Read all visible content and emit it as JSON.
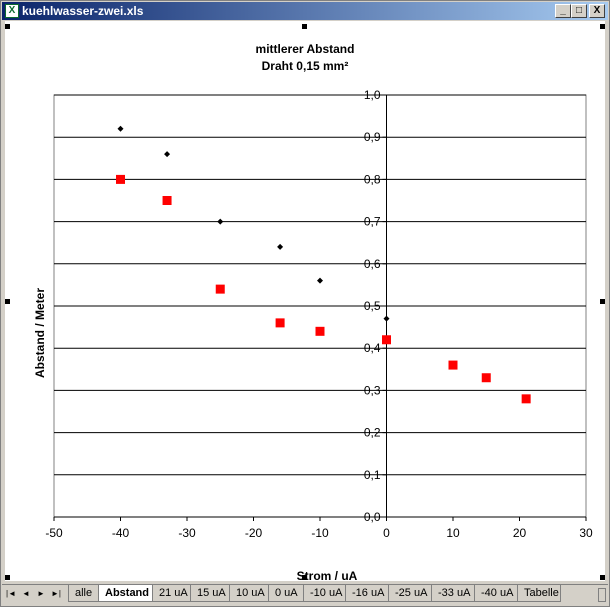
{
  "window": {
    "title": "kuehlwasser-zwei.xls",
    "minimize": "_",
    "maximize": "□",
    "close": "X",
    "icon": "excel-icon"
  },
  "chart": {
    "title_line1": "mittlerer Abstand",
    "title_line2": "Draht 0,15 mm²",
    "ylabel": "Abstand / Meter",
    "xlabel": "Strom / uA"
  },
  "chart_data": {
    "type": "scatter",
    "title": "mittlerer Abstand Draht 0,15 mm²",
    "xlabel": "Strom / uA",
    "ylabel": "Abstand / Meter",
    "xlim": [
      -50,
      30
    ],
    "ylim": [
      0,
      1
    ],
    "x_ticks": [
      "-50",
      "-40",
      "-30",
      "-20",
      "-10",
      "0",
      "10",
      "20",
      "30"
    ],
    "y_ticks": [
      "0,0",
      "0,1",
      "0,2",
      "0,3",
      "0,4",
      "0,5",
      "0,6",
      "0,7",
      "0,8",
      "0,9",
      "1,0"
    ],
    "grid": "horizontal",
    "series": [
      {
        "marker": "diamond",
        "color": "#000000",
        "points": [
          [
            -40,
            0.92
          ],
          [
            -33,
            0.86
          ],
          [
            -25,
            0.7
          ],
          [
            -16,
            0.64
          ],
          [
            -10,
            0.56
          ],
          [
            0,
            0.47
          ]
        ]
      },
      {
        "marker": "square",
        "color": "#ff0000",
        "points": [
          [
            -40,
            0.8
          ],
          [
            -33,
            0.75
          ],
          [
            -25,
            0.54
          ],
          [
            -16,
            0.46
          ],
          [
            -10,
            0.44
          ],
          [
            0,
            0.42
          ],
          [
            10,
            0.36
          ],
          [
            15,
            0.33
          ],
          [
            21,
            0.28
          ]
        ]
      }
    ]
  },
  "tabs": [
    "alle",
    "Abstand",
    "21 uA",
    "15 uA",
    "10 uA",
    "0 uA",
    "-10 uA",
    "-16 uA",
    "-25 uA",
    "-33 uA",
    "-40 uA",
    "Tabelle"
  ],
  "active_tab": "Abstand",
  "nav": {
    "first": "|◄",
    "prev": "◄",
    "next": "►",
    "last": "►|"
  }
}
